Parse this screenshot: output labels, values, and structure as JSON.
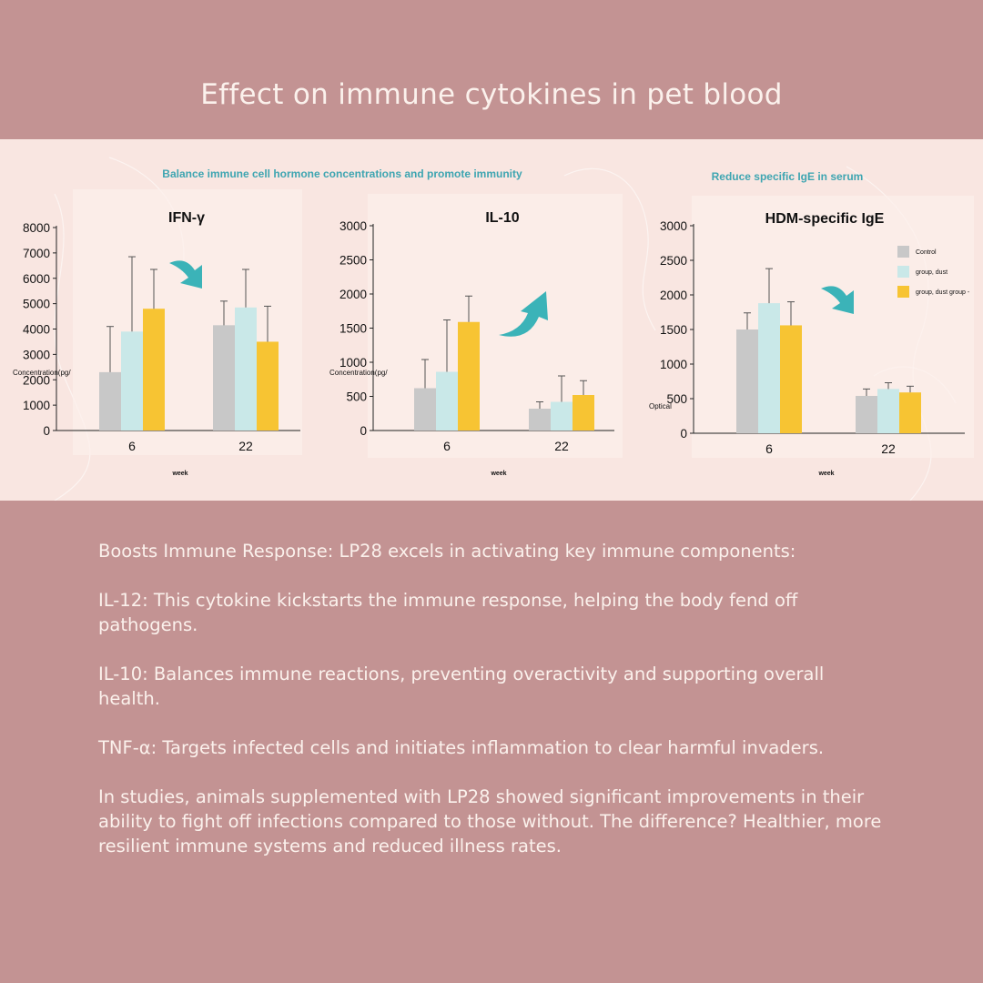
{
  "page": {
    "title": "Effect on immune cytokines in pet blood",
    "subtitle_left": "Balance immune cell hormone concentrations and promote immunity",
    "subtitle_right": "Reduce specific IgE in serum"
  },
  "colors": {
    "background": "#c39393",
    "panel": "#f9e6e1",
    "control": "#c8c8c8",
    "group_dust": "#c9e8e8",
    "group_dust_lp": "#f7c433",
    "arrow": "#3bb3b8",
    "subtitle": "#3ea5b1"
  },
  "icons": [
    "arrow-down-icon",
    "arrow-up-icon",
    "arrow-down-icon"
  ],
  "chart_data": [
    {
      "type": "bar",
      "title": "IFN-γ",
      "ylabel": "Concentration(pg/",
      "xlabel": "week",
      "categories": [
        "6",
        "22"
      ],
      "ylim": [
        0,
        8000
      ],
      "yticks": [
        0,
        1000,
        2000,
        3000,
        4000,
        5000,
        6000,
        7000,
        8000
      ],
      "series": [
        {
          "values": [
            2300,
            4150
          ],
          "errors": [
            1800,
            950
          ]
        },
        {
          "values": [
            3900,
            4850
          ],
          "errors": [
            2950,
            1500
          ]
        },
        {
          "values": [
            4800,
            3500
          ],
          "errors": [
            1550,
            1400
          ]
        }
      ],
      "trend": "down"
    },
    {
      "type": "bar",
      "title": "IL-10",
      "ylabel": "Concentration(pg/",
      "xlabel": "week",
      "categories": [
        "6",
        "22"
      ],
      "ylim": [
        0,
        3000
      ],
      "yticks": [
        0,
        500,
        1000,
        1500,
        2000,
        2500,
        3000
      ],
      "series": [
        {
          "values": [
            620,
            320
          ],
          "errors": [
            420,
            100
          ]
        },
        {
          "values": [
            860,
            420
          ],
          "errors": [
            760,
            380
          ]
        },
        {
          "values": [
            1590,
            520
          ],
          "errors": [
            380,
            210
          ]
        }
      ],
      "trend": "up"
    },
    {
      "type": "bar",
      "title": "HDM-specific IgE",
      "ylabel": "Optical",
      "xlabel": "week",
      "categories": [
        "6",
        "22"
      ],
      "ylim": [
        0,
        3000
      ],
      "yticks": [
        0,
        500,
        1000,
        1500,
        2000,
        2500,
        3000
      ],
      "series": [
        {
          "name": "Control",
          "values": [
            1500,
            540
          ],
          "errors": [
            240,
            100
          ]
        },
        {
          "name": "group, dust",
          "values": [
            1880,
            640
          ],
          "errors": [
            500,
            90
          ]
        },
        {
          "name": "group, dust group -",
          "values": [
            1560,
            590
          ],
          "errors": [
            340,
            90
          ]
        }
      ],
      "legend": "top-right",
      "trend": "down"
    }
  ],
  "text": {
    "paragraphs": [
      "Boosts Immune Response: LP28 excels in activating key immune components:",
      "IL-12: This cytokine kickstarts the immune response, helping the body fend off pathogens.",
      "IL-10: Balances immune reactions, preventing overactivity and supporting overall health.",
      "TNF-α: Targets infected cells and initiates inflammation to clear harmful invaders.",
      "In studies, animals supplemented with LP28 showed significant improvements in their ability to fight off infections compared to those without. The difference? Healthier, more resilient immune systems and reduced illness rates."
    ]
  }
}
